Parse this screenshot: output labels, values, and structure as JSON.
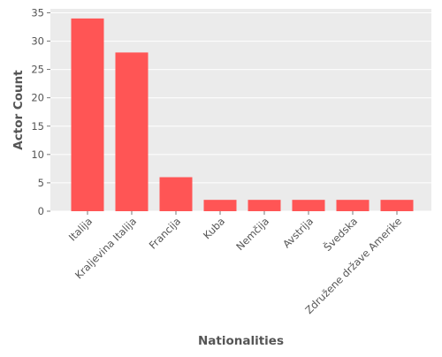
{
  "chart_data": {
    "type": "bar",
    "title": "",
    "xlabel": "Nationalities",
    "ylabel": "Actor Count",
    "categories": [
      "Italija",
      "Kraljevina Italija",
      "Francija",
      "Kuba",
      "Nemčija",
      "Avstrija",
      "Švedska",
      "Združene države Amerike"
    ],
    "values": [
      34,
      28,
      6,
      2,
      2,
      2,
      2,
      2
    ],
    "ylim": [
      0,
      35.7
    ],
    "yticks": [
      0,
      5,
      10,
      15,
      20,
      25,
      30,
      35
    ],
    "grid": true,
    "legend": "none",
    "colors": {
      "bar": "#ff5555",
      "plot_background": "#ebebeb",
      "grid": "#ffffff",
      "text": "#555555"
    }
  }
}
